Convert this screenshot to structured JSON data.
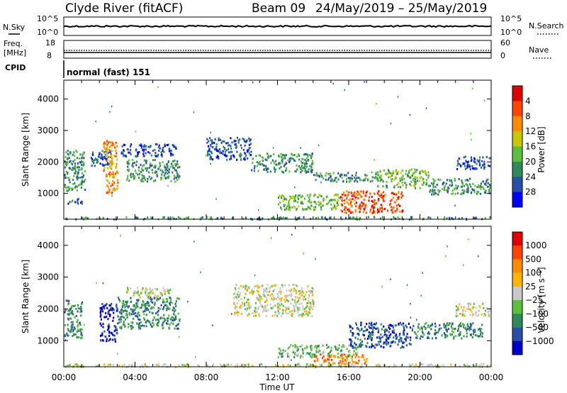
{
  "header": {
    "station": "Clyde River (fitACF)",
    "beam": "Beam 09",
    "dates": "24/May/2019 – 25/May/2019"
  },
  "noise_panel": {
    "left_label": "N.Sky",
    "left_ticks": [
      "10^5",
      "10^0"
    ],
    "right_label": "N.Search",
    "right_ticks": [
      "10^5",
      "10^0"
    ]
  },
  "freq_panel": {
    "left_label_1": "Freq.",
    "left_label_2": "[MHz]",
    "left_ticks": [
      "18",
      "8"
    ],
    "right_label": "Nave",
    "right_ticks": [
      "60",
      "0"
    ]
  },
  "cpid": {
    "label": "CPID",
    "value": "normal (fast) 151"
  },
  "chart_data": [
    {
      "type": "heatmap",
      "title": "",
      "xlabel": "",
      "ylabel": "Slant Range [km]",
      "x_ticks": [
        "00:00",
        "04:00",
        "08:00",
        "12:00",
        "16:00",
        "20:00",
        "00:00"
      ],
      "y_ticks": [
        1000,
        2000,
        3000,
        4000
      ],
      "ylim": [
        180,
        4600
      ],
      "xlim_hours": [
        0,
        24
      ],
      "colorbar": {
        "label": "Power [dB]",
        "ticks": [
          "4",
          "8",
          "12",
          "16",
          "20",
          "24",
          "28"
        ],
        "colors": [
          "#0000ff",
          "#2850a8",
          "#2e8b57",
          "#5fbf3c",
          "#c8c800",
          "#ff8c00",
          "#ff4500",
          "#e00000"
        ]
      },
      "bands": [
        {
          "t0": 0.0,
          "t1": 1.2,
          "r0": 1100,
          "r1": 2400,
          "level": 2
        },
        {
          "t0": 0.2,
          "t1": 1.0,
          "r0": 700,
          "r1": 900,
          "level": 1
        },
        {
          "t0": 1.5,
          "t1": 2.7,
          "r0": 1900,
          "r1": 2400,
          "level": 1
        },
        {
          "t0": 2.2,
          "t1": 3.0,
          "r0": 1000,
          "r1": 2700,
          "level": 5
        },
        {
          "t0": 3.2,
          "t1": 6.3,
          "r0": 2200,
          "r1": 2600,
          "level": 1
        },
        {
          "t0": 3.5,
          "t1": 6.5,
          "r0": 1400,
          "r1": 2100,
          "level": 2
        },
        {
          "t0": 8.0,
          "t1": 10.5,
          "r0": 2100,
          "r1": 2800,
          "level": 1
        },
        {
          "t0": 10.5,
          "t1": 14.0,
          "r0": 1700,
          "r1": 2300,
          "level": 2
        },
        {
          "t0": 12.0,
          "t1": 15.5,
          "r0": 500,
          "r1": 1000,
          "level": 3
        },
        {
          "t0": 14.0,
          "t1": 17.5,
          "r0": 1400,
          "r1": 1700,
          "level": 2
        },
        {
          "t0": 15.5,
          "t1": 19.0,
          "r0": 400,
          "r1": 1100,
          "level": 6
        },
        {
          "t0": 17.5,
          "t1": 20.5,
          "r0": 1200,
          "r1": 1800,
          "level": 3
        },
        {
          "t0": 20.5,
          "t1": 24.0,
          "r0": 1000,
          "r1": 1500,
          "level": 2
        },
        {
          "t0": 22.0,
          "t1": 24.0,
          "r0": 1800,
          "r1": 2200,
          "level": 1
        },
        {
          "t0": 0.0,
          "t1": 24.0,
          "r0": 200,
          "r1": 280,
          "level": 2
        }
      ]
    },
    {
      "type": "heatmap",
      "title": "",
      "xlabel": "Time UT",
      "ylabel": "Slant Range [km]",
      "x_ticks": [
        "00:00",
        "04:00",
        "08:00",
        "12:00",
        "16:00",
        "20:00",
        "00:00"
      ],
      "y_ticks": [
        1000,
        2000,
        3000,
        4000
      ],
      "ylim": [
        180,
        4600
      ],
      "xlim_hours": [
        0,
        24
      ],
      "colorbar": {
        "label": "Velocity [m s⁻¹]",
        "ticks": [
          "1000",
          "500",
          "100",
          "25",
          "−25",
          "−100",
          "−500",
          "−1000"
        ],
        "colors": [
          "#0000c8",
          "#2850a8",
          "#2e8b57",
          "#5fbf3c",
          "#c8c8c8",
          "#ffb400",
          "#ff8c00",
          "#ff4500",
          "#e00000"
        ]
      },
      "bands": [
        {
          "t0": 0.0,
          "t1": 1.0,
          "r0": 1100,
          "r1": 2300,
          "level": 2
        },
        {
          "t0": 2.0,
          "t1": 3.0,
          "r0": 1000,
          "r1": 2200,
          "level": 0
        },
        {
          "t0": 3.0,
          "t1": 6.5,
          "r0": 1400,
          "r1": 2400,
          "level": 2
        },
        {
          "t0": 3.5,
          "t1": 6.0,
          "r0": 2400,
          "r1": 2700,
          "level": 4
        },
        {
          "t0": 9.5,
          "t1": 14.0,
          "r0": 1800,
          "r1": 2800,
          "level": 4
        },
        {
          "t0": 12.0,
          "t1": 16.5,
          "r0": 500,
          "r1": 900,
          "level": 3
        },
        {
          "t0": 14.0,
          "t1": 17.0,
          "r0": 300,
          "r1": 600,
          "level": 6
        },
        {
          "t0": 16.0,
          "t1": 19.5,
          "r0": 800,
          "r1": 1600,
          "level": 1
        },
        {
          "t0": 19.5,
          "t1": 23.5,
          "r0": 1100,
          "r1": 1600,
          "level": 2
        },
        {
          "t0": 22.0,
          "t1": 24.0,
          "r0": 1800,
          "r1": 2200,
          "level": 4
        },
        {
          "t0": 0.0,
          "t1": 24.0,
          "r0": 200,
          "r1": 300,
          "level": 4
        }
      ]
    }
  ]
}
